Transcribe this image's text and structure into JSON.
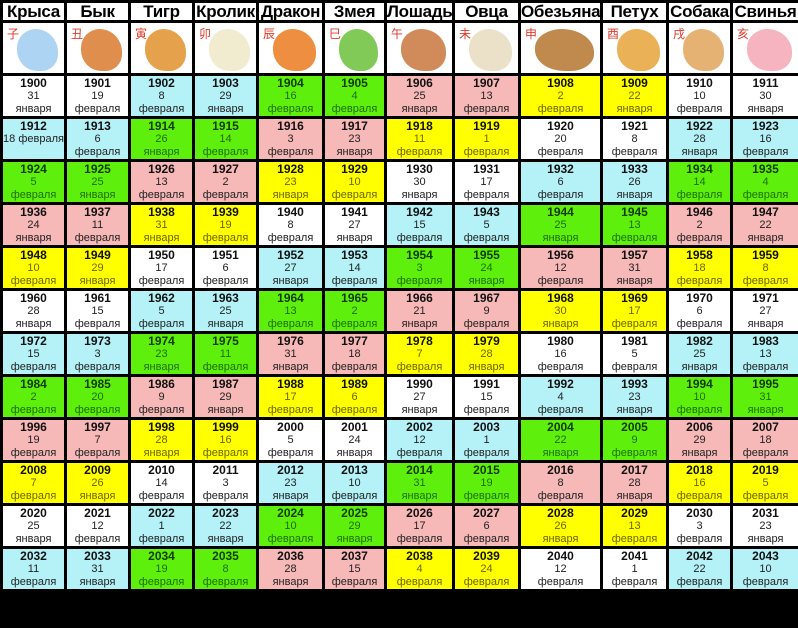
{
  "palette": {
    "w": "#ffffff",
    "b": "#b4f2f7",
    "g": "#5ef00c",
    "p": "#f7b8b8",
    "y": "#ffff00"
  },
  "animals": [
    {
      "name": "Крыса",
      "glyph": "子",
      "icon": "rat-icon",
      "color": "#9fcdf0"
    },
    {
      "name": "Бык",
      "glyph": "丑",
      "icon": "ox-icon",
      "color": "#d97a2e"
    },
    {
      "name": "Тигр",
      "glyph": "寅",
      "icon": "tiger-icon",
      "color": "#e2912e"
    },
    {
      "name": "Кролик",
      "glyph": "卯",
      "icon": "rabbit-icon",
      "color": "#efe8c8"
    },
    {
      "name": "Дракон",
      "glyph": "辰",
      "icon": "dragon-icon",
      "color": "#ea7a1e"
    },
    {
      "name": "Змея",
      "glyph": "巳",
      "icon": "snake-icon",
      "color": "#6cc13a"
    },
    {
      "name": "Лошадь",
      "glyph": "午",
      "icon": "horse-icon",
      "color": "#c9773e"
    },
    {
      "name": "Овца",
      "glyph": "未",
      "icon": "sheep-icon",
      "color": "#e8dcc0"
    },
    {
      "name": "Обезьяна",
      "glyph": "申",
      "icon": "monkey-icon",
      "color": "#b5742f"
    },
    {
      "name": "Петух",
      "glyph": "酉",
      "icon": "rooster-icon",
      "color": "#e6a33a"
    },
    {
      "name": "Собака",
      "glyph": "戌",
      "icon": "dog-icon",
      "color": "#e0a45a"
    },
    {
      "name": "Свинья",
      "glyph": "亥",
      "icon": "pig-icon",
      "color": "#f3a7b4"
    }
  ],
  "rows": [
    [
      {
        "year": "1900",
        "day": "31",
        "month": "января",
        "color": "w"
      },
      {
        "year": "1901",
        "day": "19",
        "month": "февраля",
        "color": "w"
      },
      {
        "year": "1902",
        "day": "8",
        "month": "февраля",
        "color": "b"
      },
      {
        "year": "1903",
        "day": "29",
        "month": "января",
        "color": "b"
      },
      {
        "year": "1904",
        "day": "16",
        "month": "февраля",
        "color": "g"
      },
      {
        "year": "1905",
        "day": "4",
        "month": "февраля",
        "color": "g"
      },
      {
        "year": "1906",
        "day": "25",
        "month": "января",
        "color": "p"
      },
      {
        "year": "1907",
        "day": "13",
        "month": "февраля",
        "color": "p"
      },
      {
        "year": "1908",
        "day": "2",
        "month": "февраля",
        "color": "y"
      },
      {
        "year": "1909",
        "day": "22",
        "month": "января",
        "color": "y"
      },
      {
        "year": "1910",
        "day": "10",
        "month": "февраля",
        "color": "w"
      },
      {
        "year": "1911",
        "day": "30",
        "month": "января",
        "color": "w"
      }
    ],
    [
      {
        "year": "1912",
        "day": "18 февраля",
        "month": "",
        "color": "b"
      },
      {
        "year": "1913",
        "day": "6",
        "month": "февраля",
        "color": "b"
      },
      {
        "year": "1914",
        "day": "26",
        "month": "января",
        "color": "g"
      },
      {
        "year": "1915",
        "day": "14",
        "month": "февраля",
        "color": "g"
      },
      {
        "year": "1916",
        "day": "3",
        "month": "февраля",
        "color": "p"
      },
      {
        "year": "1917",
        "day": "23",
        "month": "января",
        "color": "p"
      },
      {
        "year": "1918",
        "day": "11",
        "month": "февраля",
        "color": "y"
      },
      {
        "year": "1919",
        "day": "1",
        "month": "февраля",
        "color": "y"
      },
      {
        "year": "1920",
        "day": "20",
        "month": "февраля",
        "color": "w"
      },
      {
        "year": "1921",
        "day": "8",
        "month": "февраля",
        "color": "w"
      },
      {
        "year": "1922",
        "day": "28",
        "month": "января",
        "color": "b"
      },
      {
        "year": "1923",
        "day": "16",
        "month": "февраля",
        "color": "b"
      }
    ],
    [
      {
        "year": "1924",
        "day": "5",
        "month": "февраля",
        "color": "g"
      },
      {
        "year": "1925",
        "day": "25",
        "month": "января",
        "color": "g"
      },
      {
        "year": "1926",
        "day": "13",
        "month": "февраля",
        "color": "p"
      },
      {
        "year": "1927",
        "day": "2",
        "month": "февраля",
        "color": "p"
      },
      {
        "year": "1928",
        "day": "23",
        "month": "января",
        "color": "y"
      },
      {
        "year": "1929",
        "day": "10",
        "month": "февраля",
        "color": "y"
      },
      {
        "year": "1930",
        "day": "30",
        "month": "января",
        "color": "w"
      },
      {
        "year": "1931",
        "day": "17",
        "month": "февраля",
        "color": "w"
      },
      {
        "year": "1932",
        "day": "6",
        "month": "февраля",
        "color": "b"
      },
      {
        "year": "1933",
        "day": "26",
        "month": "января",
        "color": "b"
      },
      {
        "year": "1934",
        "day": "14",
        "month": "февраля",
        "color": "g"
      },
      {
        "year": "1935",
        "day": "4",
        "month": "февраля",
        "color": "g"
      }
    ],
    [
      {
        "year": "1936",
        "day": "24",
        "month": "января",
        "color": "p"
      },
      {
        "year": "1937",
        "day": "11",
        "month": "февраля",
        "color": "p"
      },
      {
        "year": "1938",
        "day": "31",
        "month": "января",
        "color": "y"
      },
      {
        "year": "1939",
        "day": "19",
        "month": "февраля",
        "color": "y"
      },
      {
        "year": "1940",
        "day": "8",
        "month": "февраля",
        "color": "w"
      },
      {
        "year": "1941",
        "day": "27",
        "month": "января",
        "color": "w"
      },
      {
        "year": "1942",
        "day": "15",
        "month": "февраля",
        "color": "b"
      },
      {
        "year": "1943",
        "day": "5",
        "month": "февраля",
        "color": "b"
      },
      {
        "year": "1944",
        "day": "25",
        "month": "января",
        "color": "g"
      },
      {
        "year": "1945",
        "day": "13",
        "month": "февраля",
        "color": "g"
      },
      {
        "year": "1946",
        "day": "2",
        "month": "февраля",
        "color": "p"
      },
      {
        "year": "1947",
        "day": "22",
        "month": "января",
        "color": "p"
      }
    ],
    [
      {
        "year": "1948",
        "day": "10",
        "month": "февраля",
        "color": "y"
      },
      {
        "year": "1949",
        "day": "29",
        "month": "января",
        "color": "y"
      },
      {
        "year": "1950",
        "day": "17",
        "month": "февраля",
        "color": "w"
      },
      {
        "year": "1951",
        "day": "6",
        "month": "февраля",
        "color": "w"
      },
      {
        "year": "1952",
        "day": "27",
        "month": "января",
        "color": "b"
      },
      {
        "year": "1953",
        "day": "14",
        "month": "февраля",
        "color": "b"
      },
      {
        "year": "1954",
        "day": "3",
        "month": "февраля",
        "color": "g"
      },
      {
        "year": "1955",
        "day": "24",
        "month": "января",
        "color": "g"
      },
      {
        "year": "1956",
        "day": "12",
        "month": "февраля",
        "color": "p"
      },
      {
        "year": "1957",
        "day": "31",
        "month": "января",
        "color": "p"
      },
      {
        "year": "1958",
        "day": "18",
        "month": "февраля",
        "color": "y"
      },
      {
        "year": "1959",
        "day": "8",
        "month": "февраля",
        "color": "y"
      }
    ],
    [
      {
        "year": "1960",
        "day": "28",
        "month": "января",
        "color": "w"
      },
      {
        "year": "1961",
        "day": "15",
        "month": "февраля",
        "color": "w"
      },
      {
        "year": "1962",
        "day": "5",
        "month": "февраля",
        "color": "b"
      },
      {
        "year": "1963",
        "day": "25",
        "month": "января",
        "color": "b"
      },
      {
        "year": "1964",
        "day": "13",
        "month": "февраля",
        "color": "g"
      },
      {
        "year": "1965",
        "day": "2",
        "month": "февраля",
        "color": "g"
      },
      {
        "year": "1966",
        "day": "21",
        "month": "января",
        "color": "p"
      },
      {
        "year": "1967",
        "day": "9",
        "month": "февраля",
        "color": "p"
      },
      {
        "year": "1968",
        "day": "30",
        "month": "января",
        "color": "y"
      },
      {
        "year": "1969",
        "day": "17",
        "month": "февраля",
        "color": "y"
      },
      {
        "year": "1970",
        "day": "6",
        "month": "февраля",
        "color": "w"
      },
      {
        "year": "1971",
        "day": "27",
        "month": "января",
        "color": "w"
      }
    ],
    [
      {
        "year": "1972",
        "day": "15",
        "month": "февраля",
        "color": "b"
      },
      {
        "year": "1973",
        "day": "3",
        "month": "февраля",
        "color": "b"
      },
      {
        "year": "1974",
        "day": "23",
        "month": "января",
        "color": "g"
      },
      {
        "year": "1975",
        "day": "11",
        "month": "февраля",
        "color": "g"
      },
      {
        "year": "1976",
        "day": "31",
        "month": "января",
        "color": "p"
      },
      {
        "year": "1977",
        "day": "18",
        "month": "февраля",
        "color": "p"
      },
      {
        "year": "1978",
        "day": "7",
        "month": "февраля",
        "color": "y"
      },
      {
        "year": "1979",
        "day": "28",
        "month": "января",
        "color": "y"
      },
      {
        "year": "1980",
        "day": "16",
        "month": "февраля",
        "color": "w"
      },
      {
        "year": "1981",
        "day": "5",
        "month": "февраля",
        "color": "w"
      },
      {
        "year": "1982",
        "day": "25",
        "month": "января",
        "color": "b"
      },
      {
        "year": "1983",
        "day": "13",
        "month": "февраля",
        "color": "b"
      }
    ],
    [
      {
        "year": "1984",
        "day": "2",
        "month": "февраля",
        "color": "g"
      },
      {
        "year": "1985",
        "day": "20",
        "month": "февраля",
        "color": "g"
      },
      {
        "year": "1986",
        "day": "9",
        "month": "февраля",
        "color": "p"
      },
      {
        "year": "1987",
        "day": "29",
        "month": "января",
        "color": "p"
      },
      {
        "year": "1988",
        "day": "17",
        "month": "февраля",
        "color": "y"
      },
      {
        "year": "1989",
        "day": "6",
        "month": "февраля",
        "color": "y"
      },
      {
        "year": "1990",
        "day": "27",
        "month": "января",
        "color": "w"
      },
      {
        "year": "1991",
        "day": "15",
        "month": "февраля",
        "color": "w"
      },
      {
        "year": "1992",
        "day": "4",
        "month": "февраля",
        "color": "b"
      },
      {
        "year": "1993",
        "day": "23",
        "month": "января",
        "color": "b"
      },
      {
        "year": "1994",
        "day": "10",
        "month": "февраля",
        "color": "g"
      },
      {
        "year": "1995",
        "day": "31",
        "month": "января",
        "color": "g"
      }
    ],
    [
      {
        "year": "1996",
        "day": "19",
        "month": "февраля",
        "color": "p"
      },
      {
        "year": "1997",
        "day": "7",
        "month": "февраля",
        "color": "p"
      },
      {
        "year": "1998",
        "day": "28",
        "month": "января",
        "color": "y"
      },
      {
        "year": "1999",
        "day": "16",
        "month": "февраля",
        "color": "y"
      },
      {
        "year": "2000",
        "day": "5",
        "month": "февраля",
        "color": "w"
      },
      {
        "year": "2001",
        "day": "24",
        "month": "января",
        "color": "w"
      },
      {
        "year": "2002",
        "day": "12",
        "month": "февраля",
        "color": "b"
      },
      {
        "year": "2003",
        "day": "1",
        "month": "февраля",
        "color": "b"
      },
      {
        "year": "2004",
        "day": "22",
        "month": "января",
        "color": "g"
      },
      {
        "year": "2005",
        "day": "9",
        "month": "февраля",
        "color": "g"
      },
      {
        "year": "2006",
        "day": "29",
        "month": "января",
        "color": "p"
      },
      {
        "year": "2007",
        "day": "18",
        "month": "февраля",
        "color": "p"
      }
    ],
    [
      {
        "year": "2008",
        "day": "7",
        "month": "февраля",
        "color": "y"
      },
      {
        "year": "2009",
        "day": "26",
        "month": "января",
        "color": "y"
      },
      {
        "year": "2010",
        "day": "14",
        "month": "февраля",
        "color": "w"
      },
      {
        "year": "2011",
        "day": "3",
        "month": "февраля",
        "color": "w"
      },
      {
        "year": "2012",
        "day": "23",
        "month": "января",
        "color": "b"
      },
      {
        "year": "2013",
        "day": "10",
        "month": "февраля",
        "color": "b"
      },
      {
        "year": "2014",
        "day": "31",
        "month": "января",
        "color": "g"
      },
      {
        "year": "2015",
        "day": "19",
        "month": "февраля",
        "color": "g"
      },
      {
        "year": "2016",
        "day": "8",
        "month": "февраля",
        "color": "p"
      },
      {
        "year": "2017",
        "day": "28",
        "month": "января",
        "color": "p"
      },
      {
        "year": "2018",
        "day": "16",
        "month": "февраля",
        "color": "y"
      },
      {
        "year": "2019",
        "day": "5",
        "month": "февраля",
        "color": "y"
      }
    ],
    [
      {
        "year": "2020",
        "day": "25",
        "month": "января",
        "color": "w"
      },
      {
        "year": "2021",
        "day": "12",
        "month": "февраля",
        "color": "w"
      },
      {
        "year": "2022",
        "day": "1",
        "month": "февраля",
        "color": "b"
      },
      {
        "year": "2023",
        "day": "22",
        "month": "января",
        "color": "b"
      },
      {
        "year": "2024",
        "day": "10",
        "month": "февраля",
        "color": "g"
      },
      {
        "year": "2025",
        "day": "29",
        "month": "января",
        "color": "g"
      },
      {
        "year": "2026",
        "day": "17",
        "month": "февраля",
        "color": "p"
      },
      {
        "year": "2027",
        "day": "6",
        "month": "февраля",
        "color": "p"
      },
      {
        "year": "2028",
        "day": "26",
        "month": "января",
        "color": "y"
      },
      {
        "year": "2029",
        "day": "13",
        "month": "февраля",
        "color": "y"
      },
      {
        "year": "2030",
        "day": "3",
        "month": "февраля",
        "color": "w"
      },
      {
        "year": "2031",
        "day": "23",
        "month": "января",
        "color": "w"
      }
    ],
    [
      {
        "year": "2032",
        "day": "11",
        "month": "февраля",
        "color": "b"
      },
      {
        "year": "2033",
        "day": "31",
        "month": "января",
        "color": "b"
      },
      {
        "year": "2034",
        "day": "19",
        "month": "февраля",
        "color": "g"
      },
      {
        "year": "2035",
        "day": "8",
        "month": "февраля",
        "color": "g"
      },
      {
        "year": "2036",
        "day": "28",
        "month": "января",
        "color": "p"
      },
      {
        "year": "2037",
        "day": "15",
        "month": "февраля",
        "color": "p"
      },
      {
        "year": "2038",
        "day": "4",
        "month": "февраля",
        "color": "y"
      },
      {
        "year": "2039",
        "day": "24",
        "month": "февраля",
        "color": "y"
      },
      {
        "year": "2040",
        "day": "12",
        "month": "февраля",
        "color": "w"
      },
      {
        "year": "2041",
        "day": "1",
        "month": "февраля",
        "color": "w"
      },
      {
        "year": "2042",
        "day": "22",
        "month": "февраля",
        "color": "b"
      },
      {
        "year": "2043",
        "day": "10",
        "month": "февраля",
        "color": "b"
      }
    ]
  ]
}
